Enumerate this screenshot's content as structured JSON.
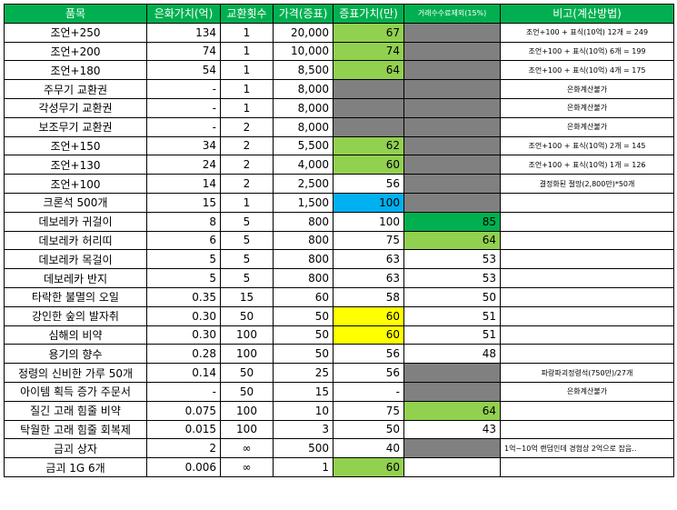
{
  "headers": [
    "품목",
    "은화가치(억)",
    "교환횟수",
    "가격(증표)",
    "증표가치(만)",
    "거래수수료제외(15%)",
    "비고(계산방법)"
  ],
  "rows": [
    {
      "item": "조언+250",
      "silver": "134",
      "trades": "1",
      "price": "20,000",
      "value": "67",
      "value_color": "#92d050",
      "fee": "",
      "fee_color": "#808080",
      "note": "조언+100 + 표식(10억) 12개 = 249"
    },
    {
      "item": "조언+200",
      "silver": "74",
      "trades": "1",
      "price": "10,000",
      "value": "74",
      "value_color": "#92d050",
      "fee": "",
      "fee_color": "#808080",
      "note": "조언+100 + 표식(10억) 6개 = 199"
    },
    {
      "item": "조언+180",
      "silver": "54",
      "trades": "1",
      "price": "8,500",
      "value": "64",
      "value_color": "#92d050",
      "fee": "",
      "fee_color": "#808080",
      "note": "조언+100 + 표식(10억) 4개 = 175"
    },
    {
      "item": "주무기 교환권",
      "silver": "-",
      "trades": "1",
      "price": "8,000",
      "value": "",
      "value_color": "#808080",
      "fee": "",
      "fee_color": "#808080",
      "note": "은화계산불가"
    },
    {
      "item": "각성무기 교환권",
      "silver": "-",
      "trades": "1",
      "price": "8,000",
      "value": "",
      "value_color": "#808080",
      "fee": "",
      "fee_color": "#808080",
      "note": "은화계산불가"
    },
    {
      "item": "보조무기 교환권",
      "silver": "-",
      "trades": "2",
      "price": "8,000",
      "value": "",
      "value_color": "#808080",
      "fee": "",
      "fee_color": "#808080",
      "note": "은화계산불가"
    },
    {
      "item": "조언+150",
      "silver": "34",
      "trades": "2",
      "price": "5,500",
      "value": "62",
      "value_color": "#92d050",
      "fee": "",
      "fee_color": "#808080",
      "note": "조언+100 + 표식(10억) 2개 = 145"
    },
    {
      "item": "조언+130",
      "silver": "24",
      "trades": "2",
      "price": "4,000",
      "value": "60",
      "value_color": "#92d050",
      "fee": "",
      "fee_color": "#808080",
      "note": "조언+100 + 표식(10억) 1개 = 126"
    },
    {
      "item": "조언+100",
      "silver": "14",
      "trades": "2",
      "price": "2,500",
      "value": "56",
      "value_color": "",
      "fee": "",
      "fee_color": "#808080",
      "note": "결정화된 절망(2,800만)*50개"
    },
    {
      "item": "크론석 500개",
      "silver": "15",
      "trades": "1",
      "price": "1,500",
      "value": "100",
      "value_color": "#00b0f0",
      "fee": "",
      "fee_color": "#808080",
      "note": ""
    },
    {
      "item": "데보레카 귀걸이",
      "silver": "8",
      "trades": "5",
      "price": "800",
      "value": "100",
      "value_color": "",
      "fee": "85",
      "fee_color": "#00b050",
      "note": ""
    },
    {
      "item": "데보레카 허리띠",
      "silver": "6",
      "trades": "5",
      "price": "800",
      "value": "75",
      "value_color": "",
      "fee": "64",
      "fee_color": "#92d050",
      "note": ""
    },
    {
      "item": "데보레카 목걸이",
      "silver": "5",
      "trades": "5",
      "price": "800",
      "value": "63",
      "value_color": "",
      "fee": "53",
      "fee_color": "",
      "note": ""
    },
    {
      "item": "데보레카 반지",
      "silver": "5",
      "trades": "5",
      "price": "800",
      "value": "63",
      "value_color": "",
      "fee": "53",
      "fee_color": "",
      "note": ""
    },
    {
      "item": "타락한 불멸의 오일",
      "silver": "0.35",
      "trades": "15",
      "price": "60",
      "value": "58",
      "value_color": "",
      "fee": "50",
      "fee_color": "",
      "note": ""
    },
    {
      "item": "강인한 숲의 발자취",
      "silver": "0.30",
      "trades": "50",
      "price": "50",
      "value": "60",
      "value_color": "#ffff00",
      "fee": "51",
      "fee_color": "",
      "note": ""
    },
    {
      "item": "심해의 비약",
      "silver": "0.30",
      "trades": "100",
      "price": "50",
      "value": "60",
      "value_color": "#ffff00",
      "fee": "51",
      "fee_color": "",
      "note": ""
    },
    {
      "item": "용기의 향수",
      "silver": "0.28",
      "trades": "100",
      "price": "50",
      "value": "56",
      "value_color": "",
      "fee": "48",
      "fee_color": "",
      "note": ""
    },
    {
      "item": "정령의 신비한 가루 50개",
      "silver": "0.14",
      "trades": "50",
      "price": "25",
      "value": "56",
      "value_color": "",
      "fee": "",
      "fee_color": "#808080",
      "note": "파랑파괴정령석(750만)/27개"
    },
    {
      "item": "아이템 획득 증가 주문서",
      "silver": "-",
      "trades": "50",
      "price": "15",
      "value": "-",
      "value_color": "",
      "fee": "",
      "fee_color": "#808080",
      "note": "은화계산불가"
    },
    {
      "item": "질긴 고래 힘줄 비약",
      "silver": "0.075",
      "trades": "100",
      "price": "10",
      "value": "75",
      "value_color": "",
      "fee": "64",
      "fee_color": "#92d050",
      "note": ""
    },
    {
      "item": "탁월한 고래 힘줄 회복제",
      "silver": "0.015",
      "trades": "100",
      "price": "3",
      "value": "50",
      "value_color": "",
      "fee": "43",
      "fee_color": "",
      "note": ""
    },
    {
      "item": "금괴 상자",
      "silver": "2",
      "trades": "∞",
      "price": "500",
      "value": "40",
      "value_color": "",
      "fee": "",
      "fee_color": "#808080",
      "note": "1억~10억 랜덤인데 경험상 2억으로 잡음.."
    },
    {
      "item": "금괴 1G 6개",
      "silver": "0.006",
      "trades": "∞",
      "price": "1",
      "value": "60",
      "value_color": "#92d050",
      "fee": "",
      "fee_color": "",
      "note": ""
    }
  ]
}
